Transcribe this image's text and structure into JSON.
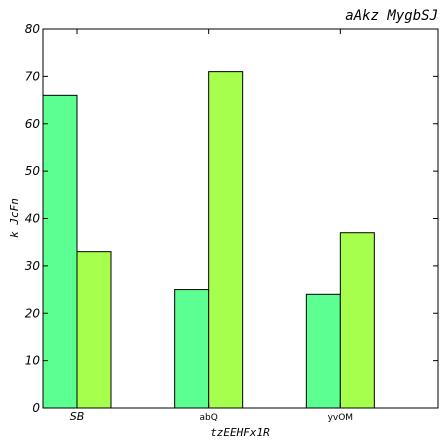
{
  "chart_data": {
    "type": "bar",
    "title": "aAkz MygbSJ",
    "xlabel": "tzEEHFx1R",
    "ylabel": "k  JcFn",
    "categories": [
      "SB",
      "abQ",
      "yvOM"
    ],
    "series": [
      {
        "values": [
          66,
          25,
          24
        ],
        "color": "#5cff92"
      },
      {
        "values": [
          33,
          71,
          37
        ],
        "color": "#a6ff4d"
      }
    ],
    "ylim": [
      0,
      80
    ],
    "yticks": [
      0,
      10,
      20,
      30,
      40,
      50,
      60,
      70,
      80
    ],
    "grid": false,
    "legend": "none"
  }
}
